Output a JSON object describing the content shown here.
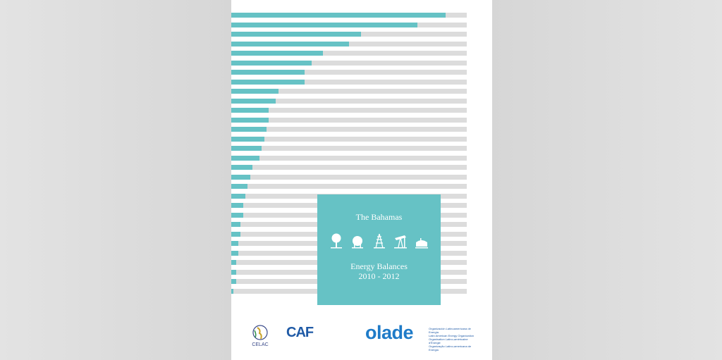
{
  "cover": {
    "country": "The Bahamas",
    "title_line1": "Energy Balances",
    "title_line2": "2010 - 2012",
    "icons": [
      "tree-icon",
      "gas-tank-icon",
      "power-tower-icon",
      "oil-pump-icon",
      "refinery-icon"
    ],
    "colors": {
      "accent": "#66c2c5",
      "track": "#dcdcdc"
    }
  },
  "bars": [
    0.91,
    0.79,
    0.55,
    0.5,
    0.39,
    0.34,
    0.31,
    0.31,
    0.2,
    0.19,
    0.16,
    0.16,
    0.15,
    0.14,
    0.13,
    0.12,
    0.09,
    0.08,
    0.07,
    0.06,
    0.05,
    0.05,
    0.04,
    0.04,
    0.03,
    0.03,
    0.02,
    0.02,
    0.02,
    0.01
  ],
  "logos": {
    "celac": "CELAC",
    "caf": "CAF",
    "olade": "olade",
    "olade_sub": [
      "Organización Latinoamericana de Energía",
      "Latin American Energy Organization",
      "Organisation Latino-américaine d'Énergie",
      "Organização Latino-americana de Energia"
    ]
  }
}
